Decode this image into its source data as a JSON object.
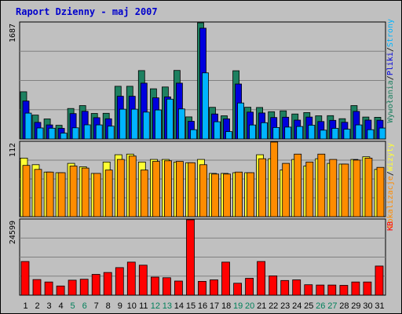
{
  "chart_data": {
    "type": "bar",
    "title": "Raport Dzienny -  maj 2007",
    "grid": true,
    "categories": [
      "1",
      "2",
      "3",
      "4",
      "5",
      "6",
      "7",
      "8",
      "9",
      "10",
      "11",
      "12",
      "13",
      "14",
      "15",
      "16",
      "17",
      "18",
      "19",
      "20",
      "21",
      "22",
      "23",
      "24",
      "25",
      "26",
      "27",
      "28",
      "29",
      "30",
      "31"
    ],
    "weekend_days": [
      "5",
      "6",
      "12",
      "13",
      "19",
      "20",
      "26",
      "27"
    ],
    "colors": {
      "title": "#0000cc",
      "weekday_label": "#000000",
      "weekend_label": "#00805a",
      "wywolania": "#1d8060",
      "pliki": "#0000dd",
      "strony": "#00b4ff",
      "wizyty": "#ffff33",
      "lokalizacje": "#ff8c00",
      "kb": "#ff0000",
      "plot_bg": "#c0c0c0",
      "frame": "#000000"
    },
    "panels": [
      {
        "name": "requests",
        "max_label": "1687",
        "ymax": 1687,
        "legend": [
          {
            "text": "Wywołania",
            "color": "#1d8060"
          },
          {
            "text": "/",
            "color": "#000000"
          },
          {
            "text": "Pliki",
            "color": "#0000dd"
          },
          {
            "text": "/",
            "color": "#000000"
          },
          {
            "text": "Strony",
            "color": "#00b4ff"
          }
        ],
        "series": [
          {
            "name": "Wywołania",
            "values": [
              685,
              346,
              291,
              198,
              442,
              485,
              370,
              373,
              765,
              765,
              993,
              728,
              755,
              995,
              320,
              1687,
              459,
              336,
              990,
              460,
              457,
              395,
              408,
              362,
              383,
              336,
              339,
              294,
              485,
              318,
              315
            ]
          },
          {
            "name": "Pliki",
            "values": [
              550,
              240,
              204,
              154,
              368,
              401,
              309,
              293,
              620,
              620,
              810,
              597,
              611,
              810,
              256,
              1608,
              363,
              292,
              798,
              390,
              377,
              311,
              316,
              274,
              318,
              253,
              270,
              242,
              400,
              274,
              271
            ]
          },
          {
            "name": "Strony",
            "values": [
              375,
              160,
              156,
              84,
              162,
              205,
              204,
              186,
              432,
              432,
              390,
              421,
              578,
              435,
              135,
              960,
              250,
              107,
              522,
              203,
              236,
              166,
              172,
              181,
              200,
              128,
              154,
              141,
              204,
              134,
              158
            ]
          }
        ]
      },
      {
        "name": "visits",
        "max_label": "112",
        "ymax": 112,
        "legend": [
          {
            "text": "Lokalizacje",
            "color": "#ff8c00"
          },
          {
            "text": "/",
            "color": "#000000"
          },
          {
            "text": "Wizyty",
            "color": "#ffff33"
          }
        ],
        "series": [
          {
            "name": "Wizyty",
            "values": [
              88,
              78,
              67,
              66,
              80,
              75,
              65,
              82,
              93,
              94,
              82,
              86,
              86,
              82,
              81,
              86,
              65,
              65,
              66,
              66,
              93,
              87,
              70,
              86,
              76,
              87,
              80,
              79,
              86,
              90,
              71
            ]
          },
          {
            "name": "Lokalizacje",
            "values": [
              77,
              71,
              67,
              66,
              76,
              73,
              65,
              70,
              86,
              91,
              70,
              83,
              84,
              83,
              81,
              78,
              64,
              64,
              67,
              66,
              87,
              112,
              80,
              94,
              82,
              94,
              86,
              79,
              85,
              88,
              74
            ]
          }
        ]
      },
      {
        "name": "kb",
        "max_label": "24599",
        "ymax": 24599,
        "legend": [
          {
            "text": "KB",
            "color": "#ff0000"
          }
        ],
        "series": [
          {
            "name": "KB",
            "values": [
              11000,
              5100,
              4300,
              3000,
              4900,
              5200,
              6800,
              7400,
              9000,
              10800,
              9800,
              5900,
              5700,
              4600,
              24599,
              4500,
              5000,
              10800,
              3900,
              5500,
              11000,
              6300,
              4800,
              5000,
              3400,
              3300,
              3300,
              3200,
              4300,
              4300,
              9500
            ]
          }
        ]
      }
    ]
  }
}
